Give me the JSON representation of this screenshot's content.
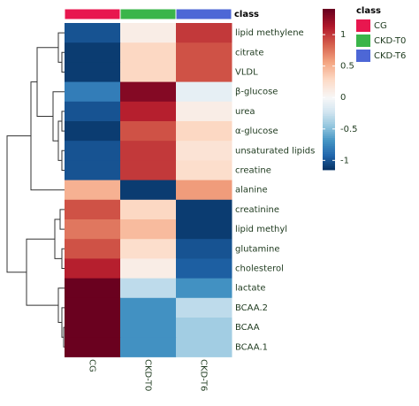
{
  "chart_data": {
    "type": "heatmap",
    "categories": [
      "CG",
      "CKD-T0",
      "CKD-T6"
    ],
    "rows": [
      "lipid methylene",
      "citrate",
      "VLDL",
      "β-glucose",
      "urea",
      "α-glucose",
      "unsaturated lipids",
      "creatine",
      "alanine",
      "creatinine",
      "lipid methyl",
      "glutamine",
      "cholesterol",
      "lactate",
      "BCAA.2",
      "BCAA",
      "BCAA.1"
    ],
    "values": [
      [
        -1.0,
        0.1,
        1.0
      ],
      [
        -1.1,
        0.3,
        0.9
      ],
      [
        -1.1,
        0.3,
        0.9
      ],
      [
        -0.8,
        1.3,
        -0.1
      ],
      [
        -1.0,
        1.1,
        0.1
      ],
      [
        -1.1,
        0.9,
        0.3
      ],
      [
        -1.0,
        1.0,
        0.2
      ],
      [
        -1.0,
        1.0,
        0.25
      ],
      [
        0.5,
        -1.1,
        0.6
      ],
      [
        0.9,
        0.3,
        -1.1
      ],
      [
        0.75,
        0.45,
        -1.1
      ],
      [
        0.9,
        0.25,
        -1.0
      ],
      [
        1.1,
        0.1,
        -0.95
      ],
      [
        1.4,
        -0.3,
        -0.7
      ],
      [
        1.4,
        -0.7,
        -0.3
      ],
      [
        1.4,
        -0.7,
        -0.4
      ],
      [
        1.4,
        -0.7,
        -0.4
      ]
    ],
    "zlim": [
      -1.15,
      1.41
    ],
    "zticks": [
      1,
      0.5,
      0,
      -0.5,
      -1
    ],
    "colors_positive": [
      "#f7f7f7",
      "#fddbc7",
      "#f4a582",
      "#d6604d",
      "#b2182b",
      "#67001f"
    ],
    "colors_negative": [
      "#f7f7f7",
      "#d1e5f0",
      "#92c5de",
      "#4393c3",
      "#2166ac",
      "#053061"
    ],
    "legend": {
      "title": "class",
      "items": [
        {
          "name": "CG",
          "color": "#e8174f"
        },
        {
          "name": "CKD-T0",
          "color": "#3ab54a"
        },
        {
          "name": "CKD-T6",
          "color": "#4d67d6"
        }
      ]
    }
  }
}
